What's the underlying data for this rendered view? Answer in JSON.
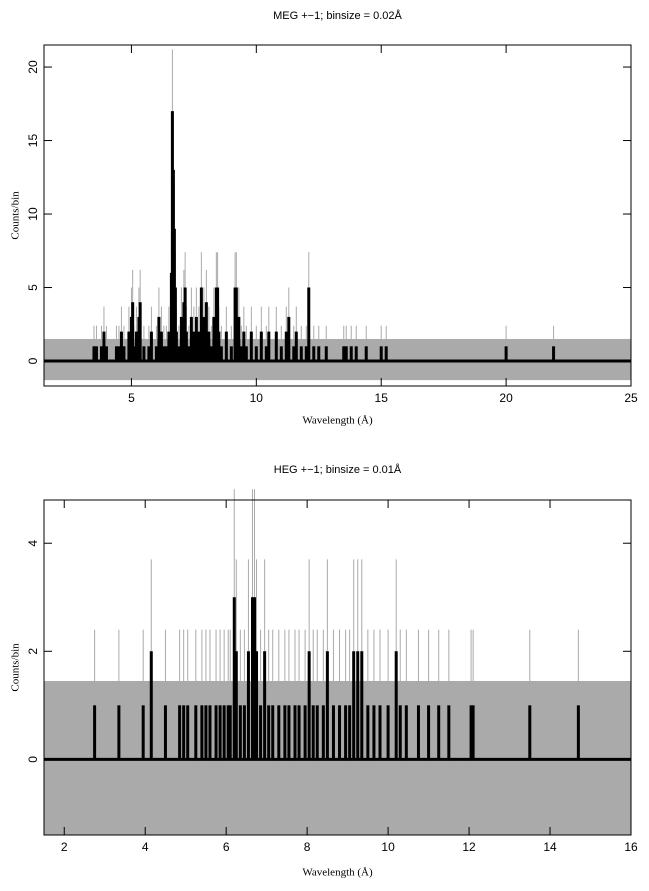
{
  "chart_data": [
    {
      "type": "histogram",
      "title": "MEG +−1; binsize = 0.02Å",
      "x_label": "Wavelength (Å)",
      "y_label": "Counts/bin",
      "x": [
        3.5,
        3.6,
        3.8,
        3.9,
        4.0,
        4.4,
        4.5,
        4.6,
        4.7,
        4.9,
        5.0,
        5.05,
        5.1,
        5.2,
        5.3,
        5.35,
        5.5,
        5.7,
        5.8,
        6.0,
        6.1,
        6.2,
        6.3,
        6.4,
        6.5,
        6.6,
        6.64,
        6.68,
        6.72,
        6.76,
        6.8,
        6.9,
        7.0,
        7.1,
        7.15,
        7.2,
        7.3,
        7.4,
        7.5,
        7.6,
        7.7,
        7.8,
        7.9,
        8.0,
        8.1,
        8.2,
        8.3,
        8.4,
        8.45,
        8.5,
        8.6,
        8.8,
        9.0,
        9.15,
        9.2,
        9.3,
        9.4,
        9.5,
        9.6,
        9.8,
        10.0,
        10.2,
        10.4,
        10.5,
        10.8,
        11.0,
        11.2,
        11.3,
        11.5,
        11.6,
        11.8,
        12.0,
        12.1,
        12.3,
        12.5,
        12.8,
        13.5,
        13.6,
        13.8,
        14.0,
        14.4,
        15.0,
        15.2,
        20.0,
        21.9
      ],
      "values": [
        1,
        1,
        1,
        2,
        1,
        1,
        1,
        2,
        1,
        2,
        3,
        4,
        1,
        2,
        3,
        4,
        1,
        1,
        2,
        1,
        3,
        2,
        1,
        1,
        2,
        6,
        17,
        13,
        9,
        5,
        2,
        1,
        3,
        4,
        5,
        2,
        1,
        3,
        2,
        3,
        2,
        5,
        3,
        4,
        2,
        1,
        3,
        5,
        5,
        2,
        1,
        2,
        1,
        5,
        5,
        3,
        1,
        2,
        1,
        2,
        1,
        2,
        1,
        2,
        2,
        1,
        2,
        3,
        1,
        2,
        1,
        1,
        5,
        1,
        1,
        1,
        1,
        1,
        1,
        1,
        1,
        1,
        1,
        1,
        1
      ],
      "errors": [
        1.4,
        1.4,
        1.4,
        1.7,
        1.4,
        1.4,
        1.4,
        1.7,
        1.4,
        1.7,
        2,
        2.2,
        1.4,
        1.7,
        2,
        2.2,
        1.4,
        1.4,
        1.7,
        1.4,
        2,
        1.7,
        1.4,
        1.4,
        1.7,
        2.6,
        4.2,
        3.7,
        3.1,
        2.4,
        1.7,
        1.4,
        2,
        2.2,
        2.4,
        1.7,
        1.4,
        2,
        1.7,
        2,
        1.7,
        2.4,
        2,
        2.2,
        1.7,
        1.4,
        2,
        2.4,
        2.4,
        1.7,
        1.4,
        1.7,
        1.4,
        2.4,
        2.4,
        2,
        1.4,
        1.7,
        1.4,
        1.7,
        1.4,
        1.7,
        1.4,
        1.7,
        1.7,
        1.4,
        1.7,
        2,
        1.4,
        1.7,
        1.4,
        1.4,
        2.4,
        1.4,
        1.4,
        1.4,
        1.4,
        1.4,
        1.4,
        1.4,
        1.4,
        1.4,
        1.4,
        1.4,
        1.4
      ],
      "zero_error_band": [
        -1.3,
        1.5
      ],
      "color": "#000000",
      "error_color": "#aaaaaa",
      "xlim": [
        1.5,
        25
      ],
      "ylim": [
        -1.7,
        21.5
      ],
      "xticks": [
        5,
        10,
        15,
        20,
        25
      ],
      "yticks": [
        0,
        5,
        10,
        15,
        20
      ]
    },
    {
      "type": "histogram",
      "title": "HEG +−1; binsize = 0.01Å",
      "x_label": "Wavelength (Å)",
      "y_label": "Counts/bin",
      "x": [
        2.75,
        3.35,
        3.95,
        4.15,
        4.5,
        4.85,
        4.95,
        5.05,
        5.25,
        5.4,
        5.5,
        5.6,
        5.75,
        5.85,
        5.95,
        6.05,
        6.1,
        6.2,
        6.25,
        6.35,
        6.45,
        6.55,
        6.65,
        6.7,
        6.75,
        6.85,
        6.95,
        7.05,
        7.15,
        7.3,
        7.45,
        7.55,
        7.7,
        7.8,
        7.95,
        8.05,
        8.15,
        8.25,
        8.4,
        8.5,
        8.65,
        8.8,
        8.95,
        9.05,
        9.15,
        9.25,
        9.35,
        9.5,
        9.65,
        9.8,
        10.0,
        10.2,
        10.3,
        10.45,
        10.75,
        11.0,
        11.25,
        11.5,
        12.05,
        12.1,
        13.5,
        14.7
      ],
      "values": [
        1,
        1,
        1,
        2,
        1,
        1,
        1,
        1,
        1,
        1,
        1,
        1,
        1,
        1,
        1,
        1,
        1,
        3,
        2,
        1,
        1,
        2,
        3,
        3,
        2,
        1,
        2,
        1,
        1,
        1,
        1,
        1,
        1,
        1,
        1,
        2,
        1,
        1,
        1,
        2,
        1,
        1,
        1,
        1,
        2,
        2,
        2,
        1,
        1,
        1,
        1,
        2,
        1,
        1,
        1,
        1,
        1,
        1,
        1,
        1,
        1,
        1
      ],
      "errors": [
        1.4,
        1.4,
        1.4,
        1.7,
        1.4,
        1.4,
        1.4,
        1.4,
        1.4,
        1.4,
        1.4,
        1.4,
        1.4,
        1.4,
        1.4,
        1.4,
        1.4,
        2,
        1.7,
        1.4,
        1.4,
        1.7,
        2,
        2,
        1.7,
        1.4,
        1.7,
        1.4,
        1.4,
        1.4,
        1.4,
        1.4,
        1.4,
        1.4,
        1.4,
        1.7,
        1.4,
        1.4,
        1.4,
        1.7,
        1.4,
        1.4,
        1.4,
        1.4,
        1.7,
        1.7,
        1.7,
        1.4,
        1.4,
        1.4,
        1.4,
        1.7,
        1.4,
        1.4,
        1.4,
        1.4,
        1.4,
        1.4,
        1.4,
        1.4,
        1.4,
        1.4
      ],
      "zero_error_band": [
        -1.4,
        1.45
      ],
      "color": "#000000",
      "error_color": "#aaaaaa",
      "xlim": [
        1.5,
        16
      ],
      "ylim": [
        -1.4,
        4.8
      ],
      "xticks": [
        2,
        4,
        6,
        8,
        10,
        12,
        14,
        16
      ],
      "yticks": [
        0,
        2,
        4
      ]
    }
  ]
}
